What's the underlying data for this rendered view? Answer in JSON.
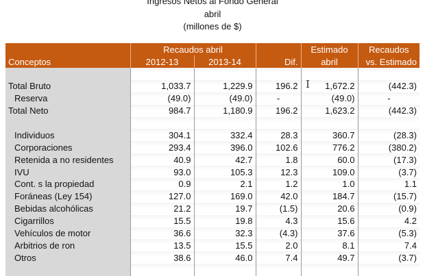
{
  "title": [
    "Ingresos Netos al Fondo General",
    "abril",
    "(millones de $)"
  ],
  "headers": {
    "conceptos": "Conceptos",
    "recaudos_abril": "Recaudos abril",
    "y1": "2012-13",
    "y2": "2013-14",
    "dif": "Dif.",
    "estimado1": "Estimado",
    "estimado2": "abril",
    "rvse1": "Recaudos",
    "rvse2": "vs. Estimado"
  },
  "rows": [
    {
      "label": "Total Bruto",
      "v": [
        "1,033.7",
        "1,229.9",
        "196.2",
        "1,672.2",
        "(442.3)"
      ]
    },
    {
      "label": "Reserva",
      "v": [
        "(49.0)",
        "(49.0)",
        "-",
        "(49.0)",
        "-"
      ]
    },
    {
      "label": "Total Neto",
      "v": [
        "984.7",
        "1,180.9",
        "196.2",
        "1,623.2",
        "(442.3)"
      ]
    },
    {
      "label": "Individuos",
      "v": [
        "304.1",
        "332.4",
        "28.3",
        "360.7",
        "(28.3)"
      ]
    },
    {
      "label": "Corporaciones",
      "v": [
        "293.4",
        "396.0",
        "102.6",
        "776.2",
        "(380.2)"
      ]
    },
    {
      "label": "Retenida a no residentes",
      "v": [
        "40.9",
        "42.7",
        "1.8",
        "60.0",
        "(17.3)"
      ]
    },
    {
      "label": "IVU",
      "v": [
        "93.0",
        "105.3",
        "12.3",
        "109.0",
        "(3.7)"
      ]
    },
    {
      "label": "Cont. s la propiedad",
      "v": [
        "0.9",
        "2.1",
        "1.2",
        "1.0",
        "1.1"
      ]
    },
    {
      "label": "Foráneas (Ley 154)",
      "v": [
        "127.0",
        "169.0",
        "42.0",
        "184.7",
        "(15.7)"
      ]
    },
    {
      "label": "Bebidas alcohólicas",
      "v": [
        "21.2",
        "19.7",
        "(1.5)",
        "20.6",
        "(0.9)"
      ]
    },
    {
      "label": "Cigarrillos",
      "v": [
        "15.5",
        "19.8",
        "4.3",
        "15.6",
        "4.2"
      ]
    },
    {
      "label": "Vehículos de motor",
      "v": [
        "36.6",
        "32.3",
        "(4.3)",
        "37.6",
        "(5.3)"
      ]
    },
    {
      "label": "Arbitrios de ron",
      "v": [
        "13.5",
        "15.5",
        "2.0",
        "8.1",
        "7.4"
      ]
    },
    {
      "label": "Otros",
      "v": [
        "38.6",
        "46.0",
        "7.4",
        "49.7",
        "(3.7)"
      ]
    }
  ]
}
